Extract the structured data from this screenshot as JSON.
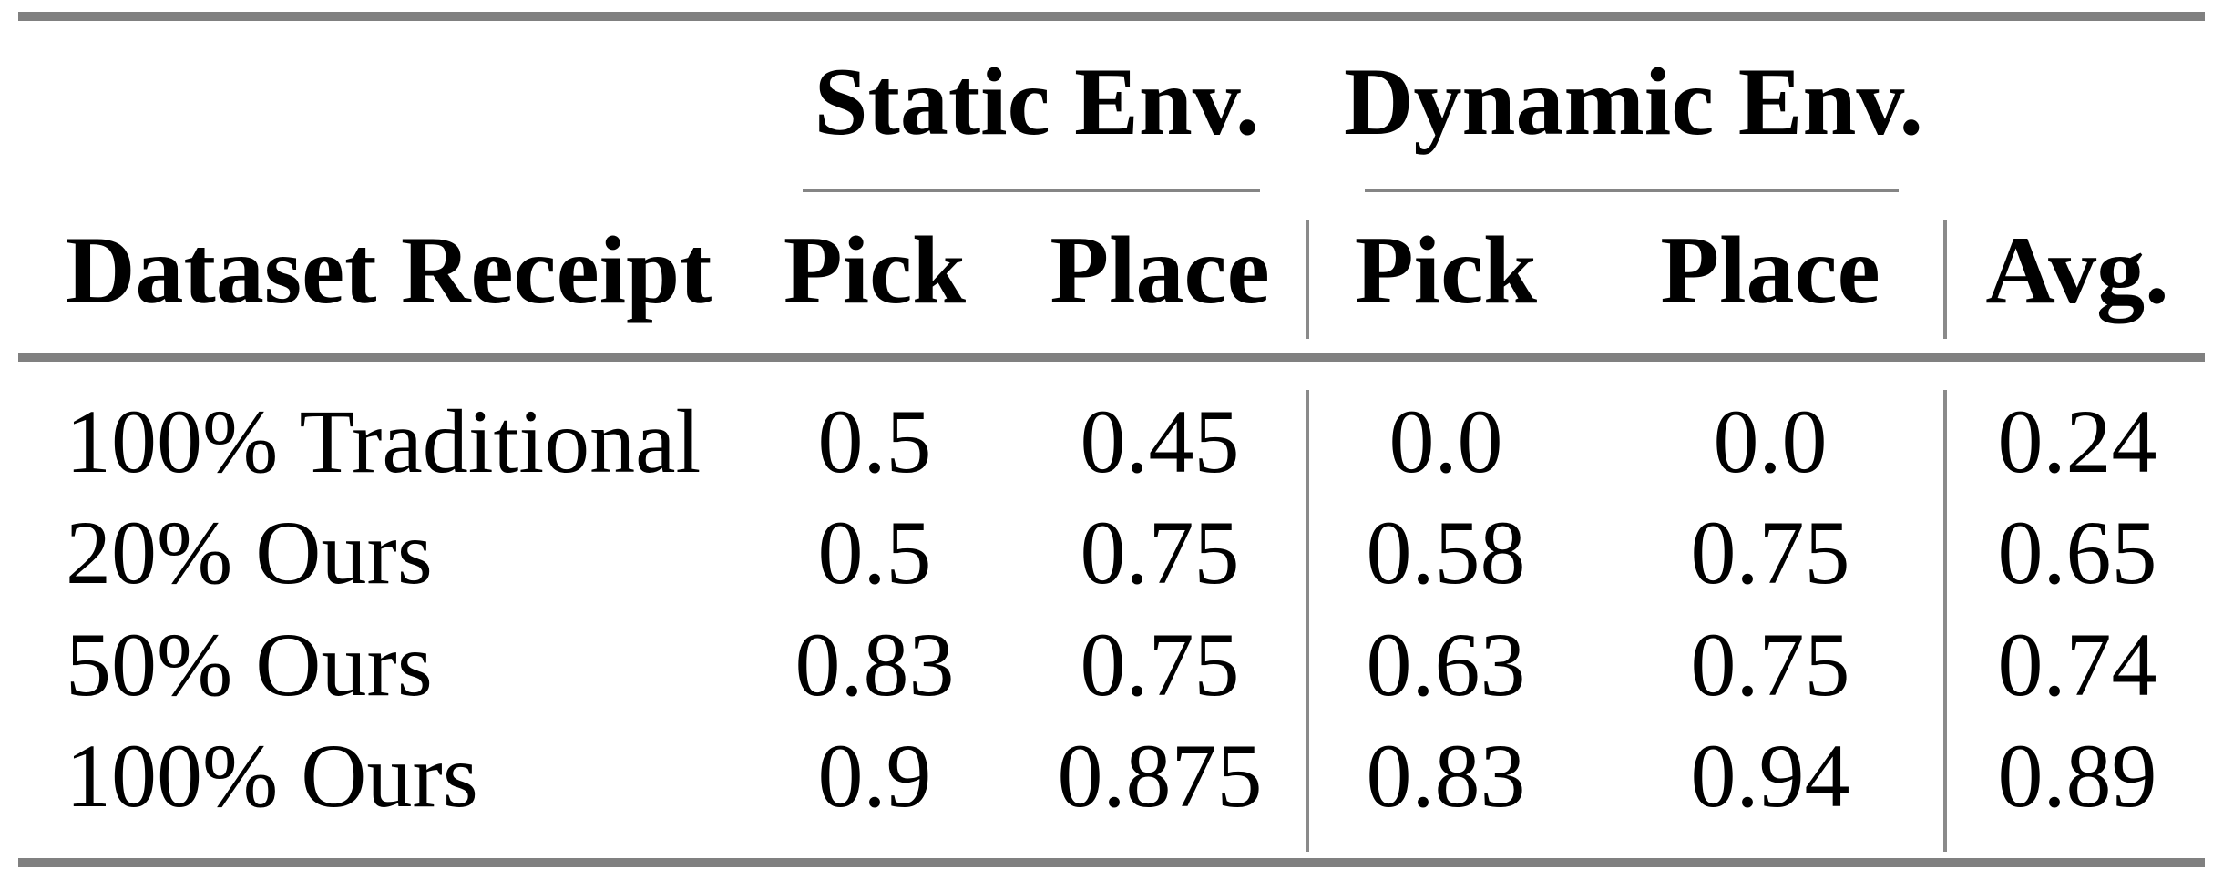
{
  "table": {
    "group_headers": [
      {
        "label": "Static Env."
      },
      {
        "label": "Dynamic Env."
      }
    ],
    "columns": {
      "row_header": "Dataset Receipt",
      "static_pick": "Pick",
      "static_place": "Place",
      "dynamic_pick": "Pick",
      "dynamic_place": "Place",
      "avg": "Avg."
    },
    "rows": [
      {
        "label": "100% Traditional",
        "static_pick": "0.5",
        "static_place": "0.45",
        "dynamic_pick": "0.0",
        "dynamic_place": "0.0",
        "avg": "0.24"
      },
      {
        "label": "20% Ours",
        "static_pick": "0.5",
        "static_place": "0.75",
        "dynamic_pick": "0.58",
        "dynamic_place": "0.75",
        "avg": "0.65"
      },
      {
        "label": "50% Ours",
        "static_pick": "0.83",
        "static_place": "0.75",
        "dynamic_pick": "0.63",
        "dynamic_place": "0.75",
        "avg": "0.74"
      },
      {
        "label": "100% Ours",
        "static_pick": "0.9",
        "static_place": "0.875",
        "dynamic_pick": "0.83",
        "dynamic_place": "0.94",
        "avg": "0.89"
      }
    ],
    "colors": {
      "rule_gray": "#808080",
      "text": "#000000",
      "background": "#ffffff"
    }
  }
}
